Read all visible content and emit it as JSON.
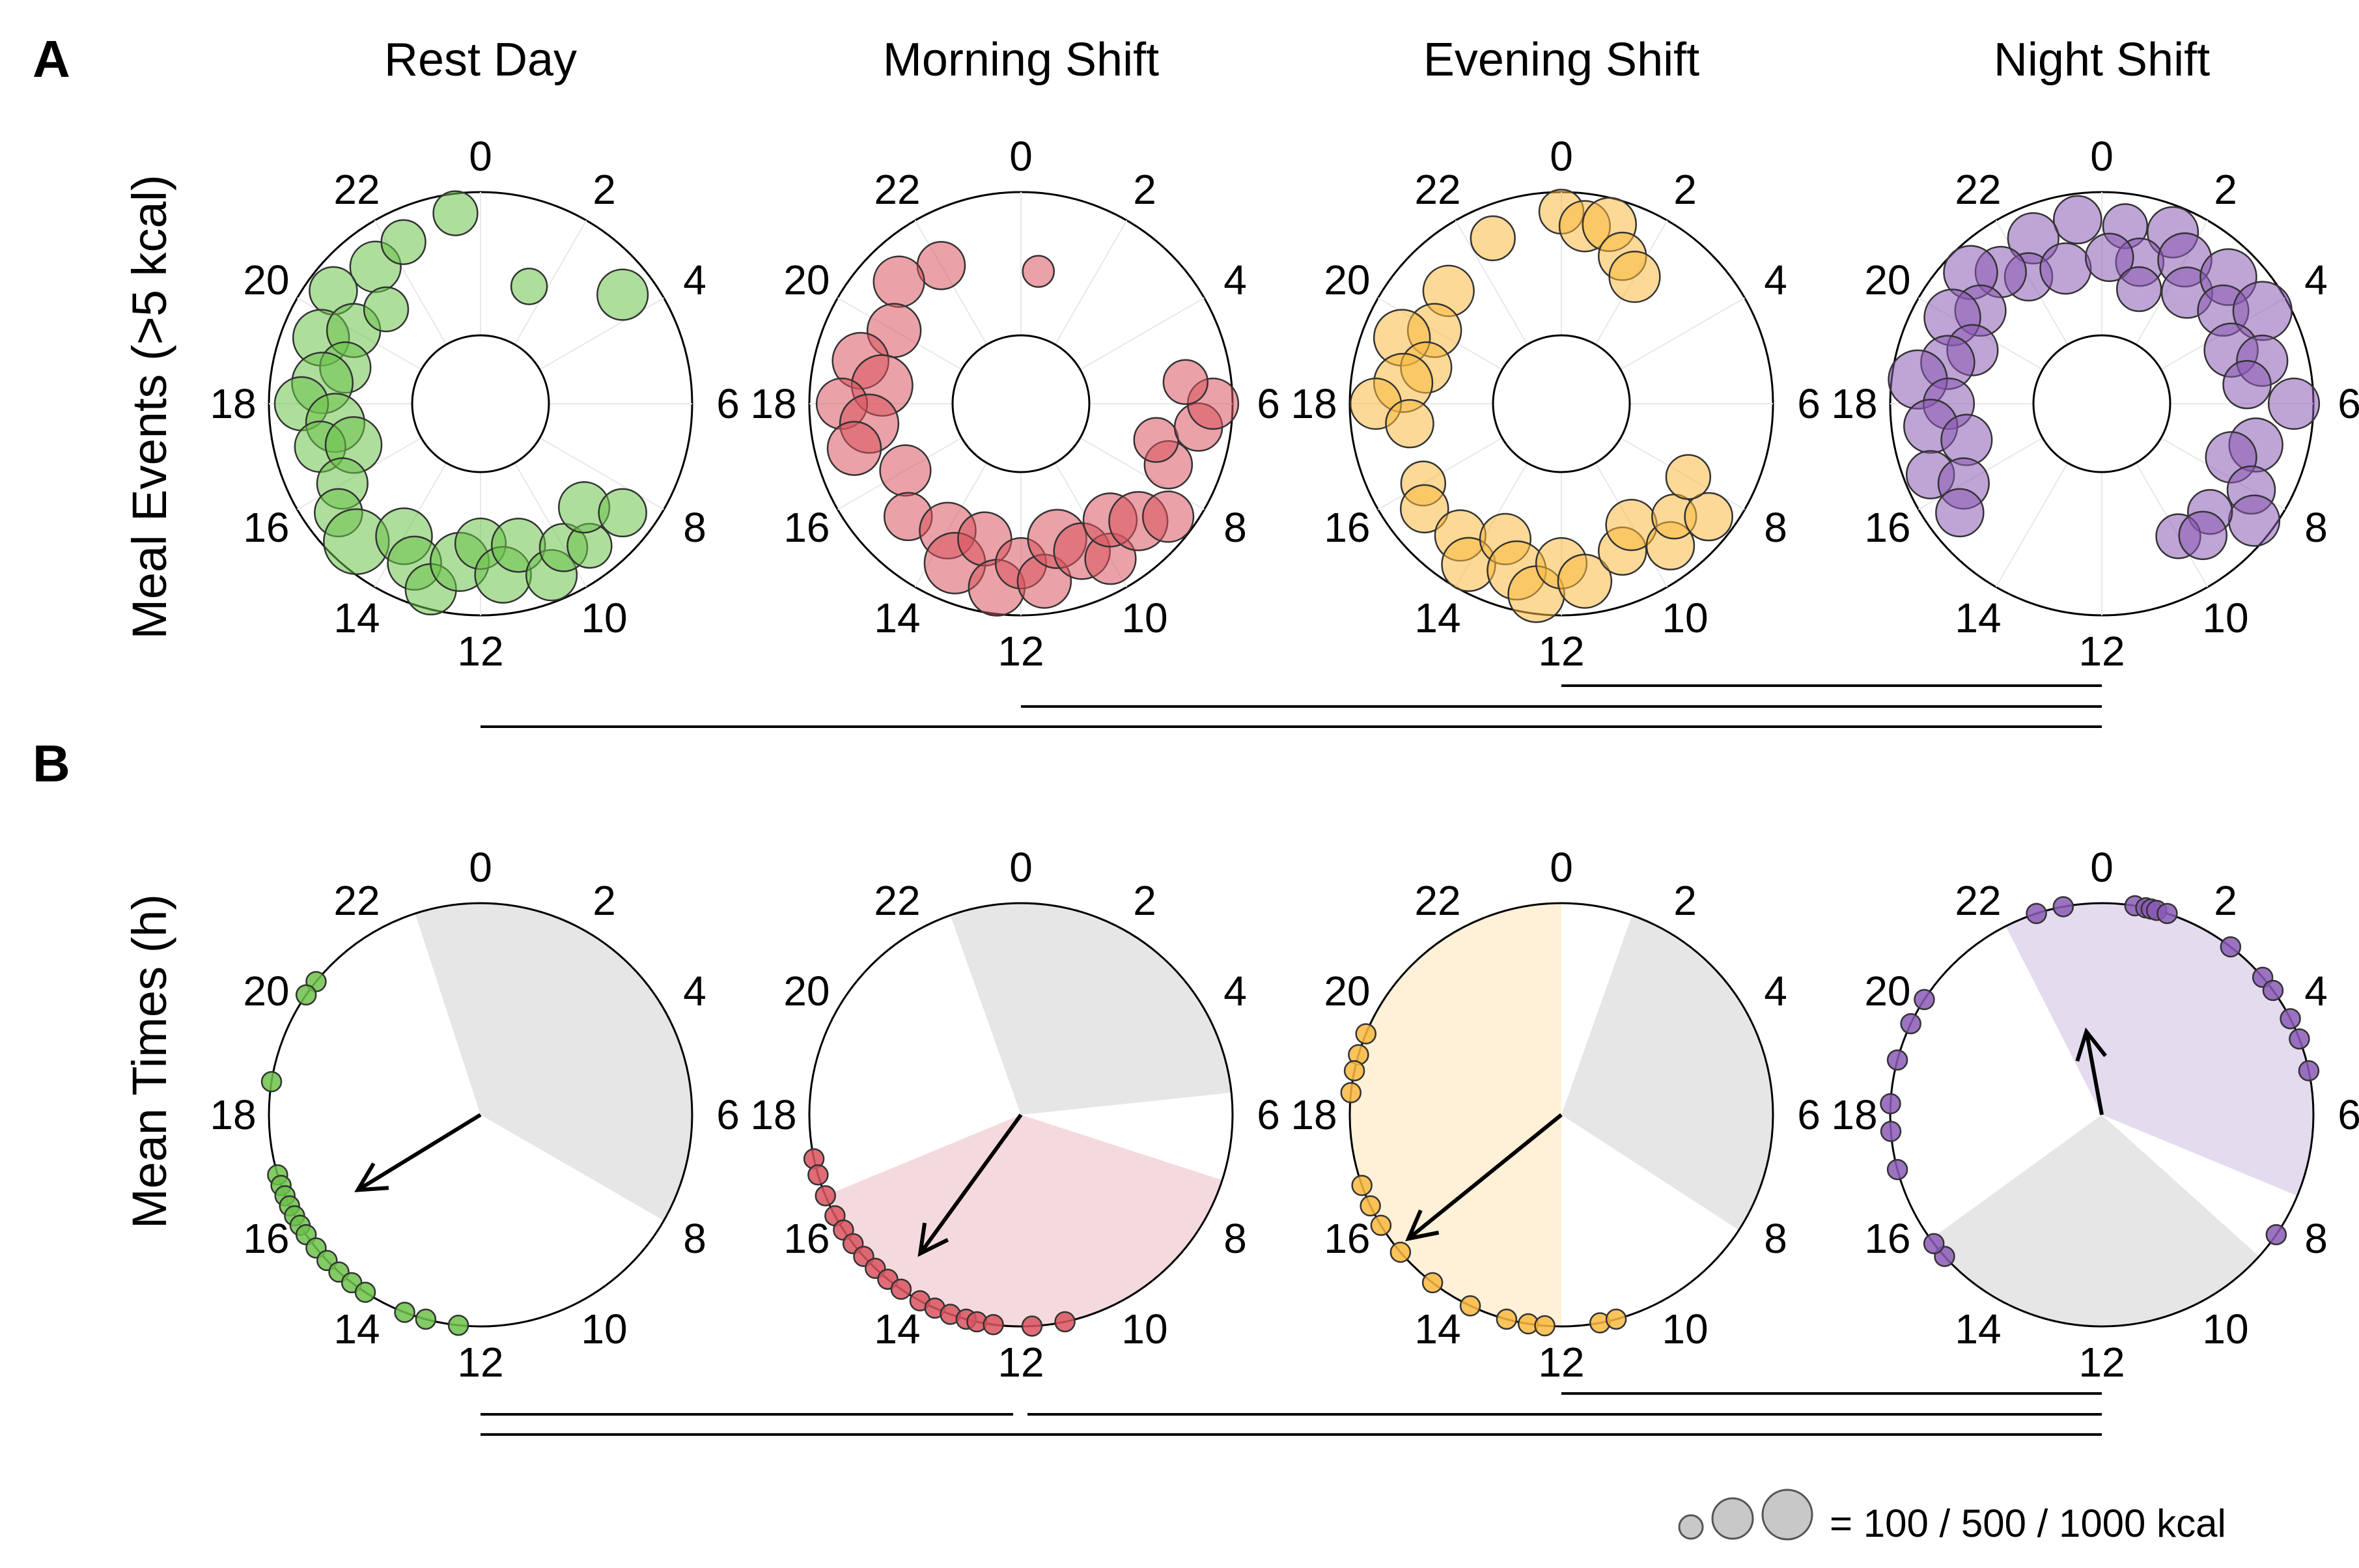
{
  "figure": {
    "panel_a_letter": "A",
    "panel_b_letter": "B",
    "legend_text": "= 100 / 500 / 1000 kcal"
  },
  "chart_data": [
    {
      "type": "scatter",
      "subtype": "polar-bubble",
      "row": "A",
      "ylabel": "Meal Events (>5 kcal)",
      "axis": {
        "unit": "hour",
        "range": [
          0,
          24
        ],
        "ticks": [
          "0",
          "2",
          "4",
          "6",
          "8",
          "10",
          "12",
          "14",
          "16",
          "18",
          "20",
          "22"
        ]
      },
      "size_legend_kcal": [
        100,
        500,
        1000
      ],
      "panels": [
        {
          "title": "Rest Day",
          "color": "#6cc24a",
          "points_hour_radius_kcal": [
            [
              21.5,
              0.8,
              300
            ],
            [
              22.3,
              0.85,
              200
            ],
            [
              20.5,
              0.9,
              250
            ],
            [
              19.5,
              0.8,
              400
            ],
            [
              20,
              0.6,
              350
            ],
            [
              19,
              0.55,
              300
            ],
            [
              18.5,
              0.7,
              500
            ],
            [
              18,
              0.85,
              350
            ],
            [
              17.5,
              0.6,
              450
            ],
            [
              17,
              0.75,
              300
            ],
            [
              16.8,
              0.5,
              400
            ],
            [
              16,
              0.7,
              300
            ],
            [
              15.5,
              0.85,
              250
            ],
            [
              14.8,
              0.9,
              600
            ],
            [
              14,
              0.65,
              400
            ],
            [
              13.5,
              0.8,
              350
            ],
            [
              13,
              0.95,
              300
            ],
            [
              12.5,
              0.7,
              450
            ],
            [
              12,
              0.55,
              300
            ],
            [
              11.5,
              0.8,
              400
            ],
            [
              11,
              0.6,
              350
            ],
            [
              10.5,
              0.9,
              300
            ],
            [
              10,
              0.75,
              250
            ],
            [
              9.5,
              0.85,
              200
            ],
            [
              9,
              0.6,
              300
            ],
            [
              8.5,
              0.85,
              250
            ],
            [
              23.5,
              0.95,
              200
            ],
            [
              1.5,
              0.45,
              100
            ],
            [
              3.5,
              0.85,
              300
            ],
            [
              21,
              0.5,
              200
            ]
          ]
        },
        {
          "title": "Morning Shift",
          "color": "#d9535f",
          "points_hour_radius_kcal": [
            [
              22,
              0.7,
              250
            ],
            [
              21,
              0.8,
              300
            ],
            [
              20,
              0.6,
              350
            ],
            [
              19,
              0.75,
              400
            ],
            [
              18.5,
              0.55,
              500
            ],
            [
              18,
              0.85,
              300
            ],
            [
              17.5,
              0.65,
              450
            ],
            [
              17,
              0.8,
              350
            ],
            [
              16,
              0.5,
              300
            ],
            [
              15,
              0.7,
              250
            ],
            [
              14,
              0.6,
              400
            ],
            [
              13.5,
              0.8,
              500
            ],
            [
              13,
              0.55,
              350
            ],
            [
              12.5,
              0.9,
              400
            ],
            [
              12,
              0.7,
              300
            ],
            [
              11.5,
              0.85,
              350
            ],
            [
              11,
              0.55,
              450
            ],
            [
              10.5,
              0.7,
              400
            ],
            [
              10,
              0.85,
              300
            ],
            [
              9.5,
              0.6,
              350
            ],
            [
              9,
              0.75,
              450
            ],
            [
              8.5,
              0.9,
              300
            ],
            [
              7.5,
              0.7,
              250
            ],
            [
              7,
              0.55,
              200
            ],
            [
              6.5,
              0.85,
              250
            ],
            [
              6,
              0.95,
              300
            ],
            [
              5.5,
              0.75,
              200
            ],
            [
              0.5,
              0.5,
              60
            ]
          ]
        },
        {
          "title": "Evening Shift",
          "color": "#f9b93f",
          "points_hour_radius_kcal": [
            [
              0,
              0.95,
              200
            ],
            [
              0.5,
              0.85,
              300
            ],
            [
              1,
              0.9,
              350
            ],
            [
              1.5,
              0.7,
              250
            ],
            [
              2,
              0.6,
              300
            ],
            [
              22.5,
              0.85,
              200
            ],
            [
              21,
              0.7,
              300
            ],
            [
              20,
              0.6,
              350
            ],
            [
              19.5,
              0.8,
              400
            ],
            [
              19,
              0.55,
              300
            ],
            [
              18.5,
              0.7,
              450
            ],
            [
              18,
              0.9,
              300
            ],
            [
              17.5,
              0.65,
              250
            ],
            [
              16,
              0.7,
              200
            ],
            [
              15.5,
              0.8,
              250
            ],
            [
              14.5,
              0.75,
              300
            ],
            [
              14,
              0.9,
              350
            ],
            [
              13.5,
              0.6,
              300
            ],
            [
              13,
              0.8,
              450
            ],
            [
              12.5,
              0.95,
              400
            ],
            [
              12,
              0.7,
              300
            ],
            [
              11.5,
              0.85,
              350
            ],
            [
              10.5,
              0.7,
              250
            ],
            [
              10,
              0.55,
              300
            ],
            [
              9.5,
              0.85,
              250
            ],
            [
              9,
              0.7,
              200
            ],
            [
              8.5,
              0.9,
              250
            ],
            [
              8,
              0.6,
              200
            ]
          ]
        },
        {
          "title": "Night Shift",
          "color": "#8b5ab5",
          "points_hour_radius_kcal": [
            [
              23.5,
              0.9,
              250
            ],
            [
              0.5,
              0.85,
              200
            ],
            [
              1.5,
              0.9,
              300
            ],
            [
              1,
              0.6,
              250
            ],
            [
              2,
              0.75,
              350
            ],
            [
              2.5,
              0.55,
              300
            ],
            [
              3,
              0.85,
              400
            ],
            [
              3.5,
              0.65,
              300
            ],
            [
              4,
              0.9,
              450
            ],
            [
              4.5,
              0.55,
              350
            ],
            [
              5,
              0.75,
              300
            ],
            [
              5.5,
              0.6,
              250
            ],
            [
              6,
              0.95,
              300
            ],
            [
              7,
              0.7,
              350
            ],
            [
              7.5,
              0.55,
              300
            ],
            [
              8,
              0.8,
              250
            ],
            [
              8.5,
              0.95,
              300
            ],
            [
              9,
              0.65,
              200
            ],
            [
              22.5,
              0.85,
              300
            ],
            [
              22,
              0.6,
              250
            ],
            [
              21.5,
              0.75,
              300
            ],
            [
              21,
              0.9,
              350
            ],
            [
              20.5,
              0.65,
              300
            ],
            [
              20,
              0.8,
              400
            ],
            [
              19.5,
              0.55,
              300
            ],
            [
              19,
              0.7,
              350
            ],
            [
              18.5,
              0.9,
              450
            ],
            [
              18,
              0.65,
              300
            ],
            [
              17.5,
              0.8,
              350
            ],
            [
              17,
              0.55,
              300
            ],
            [
              16.5,
              0.9,
              250
            ],
            [
              16,
              0.7,
              300
            ],
            [
              15.5,
              0.85,
              250
            ],
            [
              10,
              0.65,
              200
            ],
            [
              9.5,
              0.75,
              250
            ],
            [
              23,
              0.55,
              300
            ],
            [
              0.2,
              0.6,
              250
            ],
            [
              1.2,
              0.4,
              200
            ]
          ]
        }
      ]
    },
    {
      "type": "scatter",
      "subtype": "polar-mean-times",
      "row": "B",
      "ylabel": "Mean Times (h)",
      "axis": {
        "unit": "hour",
        "range": [
          0,
          24
        ],
        "ticks": [
          "0",
          "2",
          "4",
          "6",
          "8",
          "10",
          "12",
          "14",
          "16",
          "18",
          "20",
          "22"
        ]
      },
      "panels": [
        {
          "title": "Rest Day",
          "color": "#6cc24a",
          "mean_points_hour": [
            20.6,
            20.3,
            18.6,
            16.9,
            16.7,
            16.5,
            16.3,
            16.1,
            15.9,
            15.7,
            15.4,
            15.1,
            14.8,
            14.5,
            14.2,
            13.4,
            13,
            12.4
          ],
          "arrow_hour": 15.9,
          "arrow_length": 0.68,
          "shaded_sectors": [
            {
              "start": 22.8,
              "end": 8,
              "fill": "#e6e6e6"
            }
          ]
        },
        {
          "title": "Morning Shift",
          "color": "#d9535f",
          "mean_points_hour": [
            17.2,
            16.9,
            16.5,
            16.1,
            15.8,
            15.5,
            15.2,
            14.9,
            14.6,
            14.3,
            13.9,
            13.6,
            13.3,
            13,
            12.8,
            12.5,
            11.8,
            11.2
          ],
          "arrow_hour": 14.4,
          "arrow_length": 0.81,
          "shaded_sectors": [
            {
              "start": 22.7,
              "end": 5.6,
              "fill": "#e6e6e6"
            },
            {
              "start": 7.2,
              "end": 16.5,
              "fill": "#f4d9dd"
            }
          ]
        },
        {
          "title": "Evening Shift",
          "color": "#f9b93f",
          "mean_points_hour": [
            19.5,
            19.1,
            18.8,
            18.4,
            16.7,
            16.3,
            15.9,
            15.3,
            14.5,
            13.7,
            13,
            12.6,
            12.3,
            11.3,
            11
          ],
          "arrow_hour": 15.4,
          "arrow_length": 0.93,
          "shaded_sectors": [
            {
              "start": 1.3,
              "end": 8.2,
              "fill": "#e6e6e6"
            },
            {
              "start": 12,
              "end": 0,
              "fill": "#fff0d8"
            }
          ]
        },
        {
          "title": "Night Shift",
          "color": "#8b5ab5",
          "mean_points_hour": [
            23.3,
            22.8,
            0.6,
            0.8,
            0.9,
            1,
            1.2,
            2.5,
            3.3,
            3.6,
            4.2,
            4.6,
            5.2,
            8.3,
            15.2,
            15.5,
            17,
            17.7,
            18.2,
            19,
            19.7,
            20.2
          ],
          "arrow_hour": 23.3,
          "arrow_length": 0.4,
          "shaded_sectors": [
            {
              "start": 22.2,
              "end": 7.5,
              "fill": "#e5dbef"
            },
            {
              "start": 8.8,
              "end": 15.6,
              "fill": "#e6e6e6"
            }
          ]
        }
      ]
    }
  ],
  "significance_brackets": {
    "row_a": [
      {
        "from": "Evening Shift",
        "to": "Night Shift"
      },
      {
        "from": "Morning Shift",
        "to": "Night Shift"
      },
      {
        "from": "Rest Day",
        "to": "Night Shift"
      }
    ],
    "row_b": [
      {
        "from": "Evening Shift",
        "to": "Night Shift"
      },
      {
        "from": "Rest Day",
        "to": "Morning Shift"
      },
      {
        "from": "Morning Shift",
        "to": "Night Shift"
      },
      {
        "from": "Rest Day",
        "to": "Night Shift"
      }
    ]
  }
}
